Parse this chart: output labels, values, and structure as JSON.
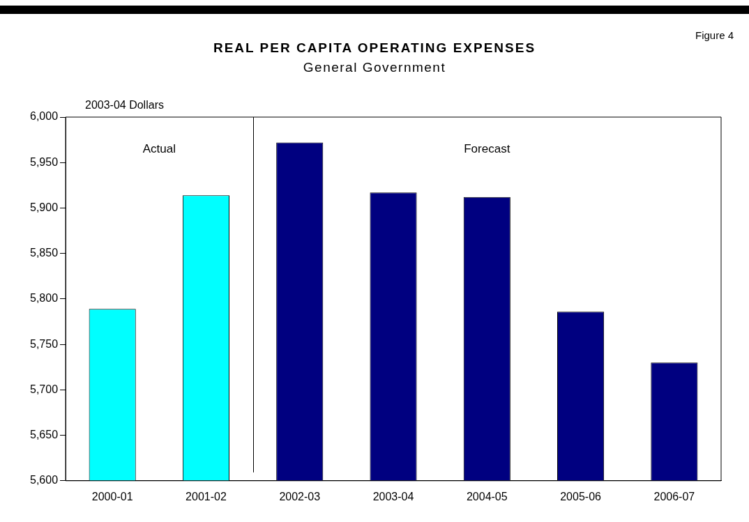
{
  "chart_data": {
    "type": "bar",
    "title": "REAL PER CAPITA OPERATING EXPENSES",
    "subtitle": "General Government",
    "ylabel": "2003-04 Dollars",
    "categories": [
      "2000-01",
      "2001-02",
      "2002-03",
      "2003-04",
      "2004-05",
      "2005-06",
      "2006-07"
    ],
    "values": [
      5789,
      5914,
      5972,
      5917,
      5912,
      5786,
      5730
    ],
    "colors": [
      "#00ffff",
      "#00ffff",
      "#000080",
      "#000080",
      "#000080",
      "#000080",
      "#000080"
    ],
    "ylim": [
      5600,
      6000
    ],
    "yticks": [
      {
        "value": 5600,
        "label": "5,600"
      },
      {
        "value": 5650,
        "label": "5,650"
      },
      {
        "value": 5700,
        "label": "5,700"
      },
      {
        "value": 5750,
        "label": "5,750"
      },
      {
        "value": 5800,
        "label": "5,800"
      },
      {
        "value": 5850,
        "label": "5,850"
      },
      {
        "value": 5900,
        "label": "5,900"
      },
      {
        "value": 5950,
        "label": "5,950"
      },
      {
        "value": 6000,
        "label": "6,000"
      }
    ],
    "grid": false,
    "legend": false,
    "annotations": [
      "Figure 4",
      "Actual",
      "Forecast"
    ]
  }
}
